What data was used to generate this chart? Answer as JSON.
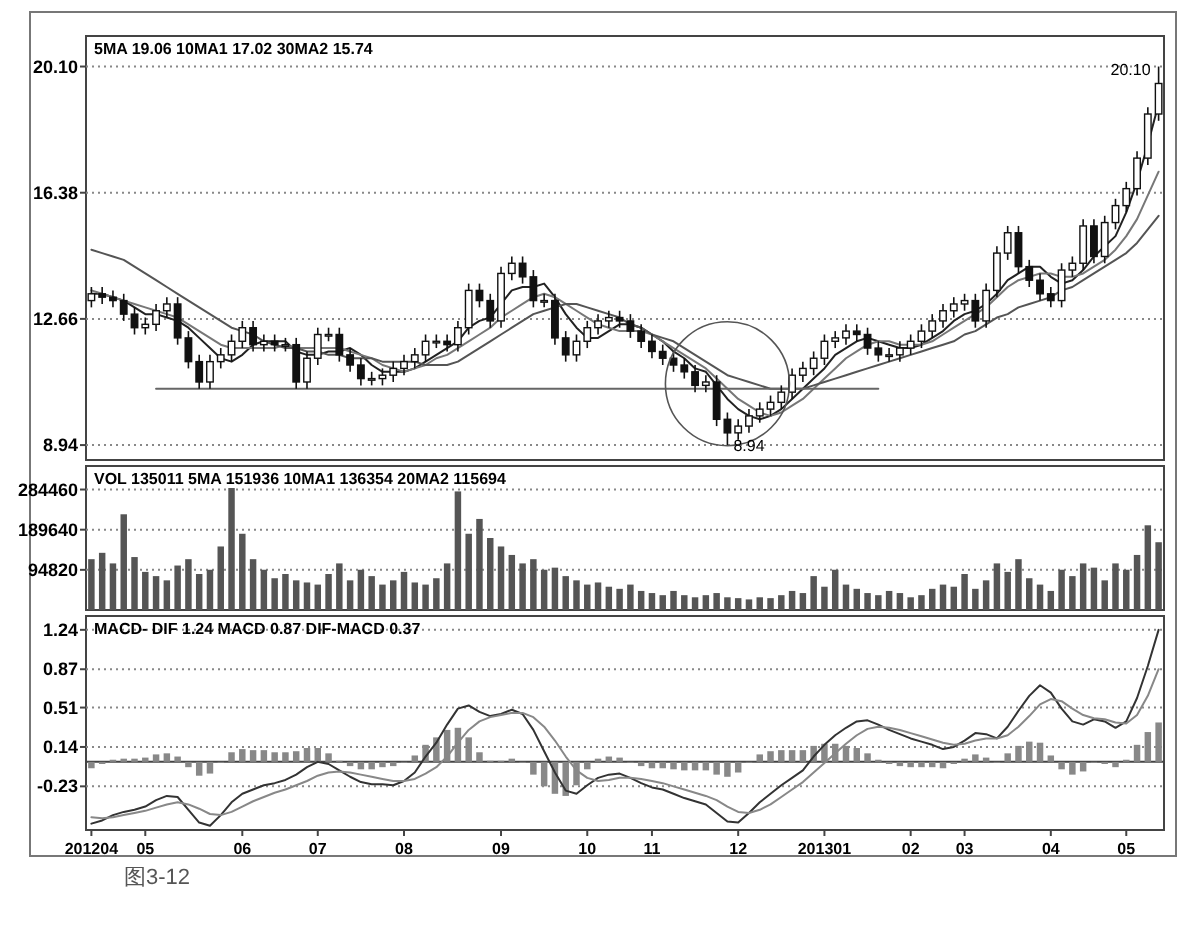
{
  "chart_data": [
    {
      "type": "candlestick",
      "categories": [
        "201204",
        null,
        null,
        null,
        null,
        "05",
        null,
        null,
        null,
        null,
        null,
        null,
        null,
        null,
        "06",
        null,
        null,
        null,
        null,
        null,
        null,
        "07",
        null,
        null,
        null,
        null,
        null,
        null,
        null,
        "08",
        null,
        null,
        null,
        null,
        null,
        null,
        null,
        null,
        "09",
        null,
        null,
        null,
        null,
        null,
        null,
        null,
        "10",
        null,
        null,
        null,
        null,
        null,
        "11",
        null,
        null,
        null,
        null,
        null,
        null,
        null,
        "12",
        null,
        null,
        null,
        null,
        null,
        null,
        null,
        "201301",
        null,
        null,
        null,
        null,
        null,
        null,
        null,
        "02",
        null,
        null,
        null,
        null,
        "03",
        null,
        null,
        null,
        null,
        null,
        null,
        null,
        "04",
        null,
        null,
        null,
        null,
        null,
        null,
        "05",
        null,
        null,
        null
      ],
      "ohlc": [
        [
          13.2,
          13.6,
          13.0,
          13.4
        ],
        [
          13.4,
          13.6,
          13.1,
          13.3
        ],
        [
          13.3,
          13.5,
          13.0,
          13.2
        ],
        [
          13.2,
          13.4,
          12.6,
          12.8
        ],
        [
          12.8,
          13.0,
          12.2,
          12.4
        ],
        [
          12.4,
          12.7,
          12.2,
          12.5
        ],
        [
          12.5,
          13.1,
          12.3,
          12.9
        ],
        [
          12.9,
          13.3,
          12.7,
          13.1
        ],
        [
          13.1,
          13.3,
          11.9,
          12.1
        ],
        [
          12.1,
          12.3,
          11.2,
          11.4
        ],
        [
          11.4,
          11.6,
          10.6,
          10.8
        ],
        [
          10.8,
          11.6,
          10.6,
          11.4
        ],
        [
          11.4,
          11.8,
          11.2,
          11.6
        ],
        [
          11.6,
          12.2,
          11.4,
          12.0
        ],
        [
          12.0,
          12.6,
          11.8,
          12.4
        ],
        [
          12.4,
          12.6,
          11.7,
          11.9
        ],
        [
          11.9,
          12.2,
          11.7,
          12.0
        ],
        [
          12.0,
          12.2,
          11.7,
          11.9
        ],
        [
          11.9,
          12.1,
          11.7,
          11.9
        ],
        [
          11.9,
          12.1,
          10.6,
          10.8
        ],
        [
          10.8,
          11.7,
          10.6,
          11.5
        ],
        [
          11.5,
          12.4,
          11.3,
          12.2
        ],
        [
          12.2,
          12.4,
          12.0,
          12.2
        ],
        [
          12.2,
          12.4,
          11.4,
          11.6
        ],
        [
          11.6,
          11.8,
          11.1,
          11.3
        ],
        [
          11.3,
          11.5,
          10.7,
          10.9
        ],
        [
          10.9,
          11.1,
          10.7,
          10.9
        ],
        [
          10.9,
          11.2,
          10.7,
          11.0
        ],
        [
          11.0,
          11.4,
          10.8,
          11.2
        ],
        [
          11.2,
          11.6,
          11.0,
          11.4
        ],
        [
          11.4,
          11.8,
          11.2,
          11.6
        ],
        [
          11.6,
          12.2,
          11.4,
          12.0
        ],
        [
          12.0,
          12.2,
          11.8,
          12.0
        ],
        [
          12.0,
          12.2,
          11.7,
          11.9
        ],
        [
          11.9,
          12.6,
          11.7,
          12.4
        ],
        [
          12.4,
          13.7,
          12.2,
          13.5
        ],
        [
          13.5,
          13.7,
          13.0,
          13.2
        ],
        [
          13.2,
          13.4,
          12.4,
          12.6
        ],
        [
          12.6,
          14.2,
          12.4,
          14.0
        ],
        [
          14.0,
          14.5,
          13.8,
          14.3
        ],
        [
          14.3,
          14.5,
          13.7,
          13.9
        ],
        [
          13.9,
          14.1,
          13.0,
          13.2
        ],
        [
          13.2,
          13.4,
          13.0,
          13.2
        ],
        [
          13.2,
          13.4,
          11.9,
          12.1
        ],
        [
          12.1,
          12.3,
          11.4,
          11.6
        ],
        [
          11.6,
          12.2,
          11.4,
          12.0
        ],
        [
          12.0,
          12.6,
          11.8,
          12.4
        ],
        [
          12.4,
          12.8,
          12.2,
          12.6
        ],
        [
          12.6,
          12.9,
          12.4,
          12.7
        ],
        [
          12.7,
          12.9,
          12.4,
          12.6
        ],
        [
          12.6,
          12.8,
          12.1,
          12.3
        ],
        [
          12.3,
          12.5,
          11.8,
          12.0
        ],
        [
          12.0,
          12.2,
          11.5,
          11.7
        ],
        [
          11.7,
          11.9,
          11.3,
          11.5
        ],
        [
          11.5,
          11.7,
          11.1,
          11.3
        ],
        [
          11.3,
          11.5,
          10.9,
          11.1
        ],
        [
          11.1,
          11.3,
          10.5,
          10.7
        ],
        [
          10.7,
          11.0,
          10.5,
          10.8
        ],
        [
          10.8,
          11.0,
          9.5,
          9.7
        ],
        [
          9.7,
          9.9,
          8.94,
          9.3
        ],
        [
          9.3,
          9.7,
          9.1,
          9.5
        ],
        [
          9.5,
          10.0,
          9.3,
          9.8
        ],
        [
          9.8,
          10.2,
          9.6,
          10.0
        ],
        [
          10.0,
          10.4,
          9.8,
          10.2
        ],
        [
          10.2,
          10.7,
          10.0,
          10.5
        ],
        [
          10.5,
          11.2,
          10.3,
          11.0
        ],
        [
          11.0,
          11.4,
          10.8,
          11.2
        ],
        [
          11.2,
          11.7,
          11.0,
          11.5
        ],
        [
          11.5,
          12.2,
          11.3,
          12.0
        ],
        [
          12.0,
          12.3,
          11.8,
          12.1
        ],
        [
          12.1,
          12.5,
          11.9,
          12.3
        ],
        [
          12.3,
          12.5,
          12.0,
          12.2
        ],
        [
          12.2,
          12.4,
          11.6,
          11.8
        ],
        [
          11.8,
          12.0,
          11.4,
          11.6
        ],
        [
          11.6,
          11.8,
          11.4,
          11.6
        ],
        [
          11.6,
          12.0,
          11.4,
          11.8
        ],
        [
          11.8,
          12.2,
          11.6,
          12.0
        ],
        [
          12.0,
          12.5,
          11.8,
          12.3
        ],
        [
          12.3,
          12.8,
          12.1,
          12.6
        ],
        [
          12.6,
          13.1,
          12.4,
          12.9
        ],
        [
          12.9,
          13.3,
          12.7,
          13.1
        ],
        [
          13.1,
          13.4,
          12.9,
          13.2
        ],
        [
          13.2,
          13.4,
          12.4,
          12.6
        ],
        [
          12.6,
          13.7,
          12.4,
          13.5
        ],
        [
          13.5,
          14.8,
          13.3,
          14.6
        ],
        [
          14.6,
          15.4,
          14.4,
          15.2
        ],
        [
          15.2,
          15.4,
          14.0,
          14.2
        ],
        [
          14.2,
          14.4,
          13.6,
          13.8
        ],
        [
          13.8,
          14.0,
          13.2,
          13.4
        ],
        [
          13.4,
          13.6,
          13.0,
          13.2
        ],
        [
          13.2,
          14.3,
          13.0,
          14.1
        ],
        [
          14.1,
          14.5,
          13.9,
          14.3
        ],
        [
          14.3,
          15.6,
          14.1,
          15.4
        ],
        [
          15.4,
          15.6,
          14.3,
          14.5
        ],
        [
          14.5,
          15.7,
          14.3,
          15.5
        ],
        [
          15.5,
          16.2,
          15.3,
          16.0
        ],
        [
          16.0,
          16.7,
          15.8,
          16.5
        ],
        [
          16.5,
          17.6,
          16.3,
          17.4
        ],
        [
          17.4,
          18.9,
          17.2,
          18.7
        ],
        [
          18.7,
          20.1,
          18.5,
          19.6
        ]
      ],
      "series": [
        {
          "type": "line",
          "color": "#222222",
          "values": [
            13.4,
            13.4,
            13.3,
            13.2,
            13.0,
            12.8,
            12.8,
            12.7,
            12.6,
            12.4,
            12.1,
            11.8,
            11.5,
            11.4,
            11.6,
            11.9,
            12.0,
            12.0,
            12.0,
            11.7,
            11.6,
            11.6,
            11.7,
            11.7,
            11.8,
            11.6,
            11.3,
            11.1,
            11.1,
            11.1,
            11.2,
            11.4,
            11.6,
            11.8,
            12.0,
            12.4,
            12.6,
            12.7,
            13.1,
            13.5,
            13.6,
            13.6,
            13.7,
            13.3,
            12.8,
            12.4,
            12.1,
            12.1,
            12.3,
            12.5,
            12.5,
            12.4,
            12.2,
            12.0,
            11.7,
            11.5,
            11.2,
            11.1,
            10.7,
            10.3,
            10.0,
            9.8,
            9.7,
            9.8,
            10.0,
            10.3,
            10.6,
            10.9,
            11.2,
            11.6,
            11.8,
            12.0,
            12.1,
            12.0,
            11.9,
            11.8,
            11.8,
            11.9,
            12.1,
            12.3,
            12.6,
            12.8,
            12.9,
            13.1,
            13.4,
            13.8,
            14.0,
            14.2,
            14.2,
            13.9,
            13.7,
            13.8,
            14.1,
            14.5,
            14.8,
            15.1,
            15.8,
            16.7,
            17.8,
            19.0
          ]
        },
        {
          "type": "line",
          "color": "#777777",
          "values": [
            13.5,
            13.4,
            13.3,
            13.2,
            13.1,
            13.0,
            12.9,
            12.8,
            12.7,
            12.5,
            12.3,
            12.1,
            11.9,
            11.8,
            11.8,
            11.8,
            11.8,
            11.8,
            11.9,
            11.8,
            11.8,
            11.8,
            11.8,
            11.8,
            11.7,
            11.6,
            11.5,
            11.3,
            11.2,
            11.1,
            11.2,
            11.3,
            11.5,
            11.6,
            11.8,
            12.0,
            12.2,
            12.4,
            12.7,
            12.9,
            13.1,
            13.3,
            13.4,
            13.3,
            13.1,
            12.9,
            12.7,
            12.5,
            12.4,
            12.3,
            12.3,
            12.3,
            12.2,
            12.0,
            11.8,
            11.6,
            11.4,
            11.2,
            10.9,
            10.6,
            10.3,
            10.1,
            9.9,
            9.8,
            9.9,
            10.1,
            10.3,
            10.6,
            10.9,
            11.2,
            11.5,
            11.7,
            11.9,
            12.0,
            12.0,
            11.9,
            11.9,
            11.9,
            12.0,
            12.2,
            12.4,
            12.6,
            12.8,
            13.0,
            13.3,
            13.6,
            13.8,
            13.9,
            14.0,
            14.0,
            13.9,
            13.9,
            14.0,
            14.2,
            14.4,
            14.7,
            15.1,
            15.6,
            16.3,
            17.0
          ]
        },
        {
          "type": "line",
          "color": "#555555",
          "values": [
            14.7,
            14.6,
            14.5,
            14.4,
            14.2,
            14.0,
            13.8,
            13.6,
            13.4,
            13.2,
            13.0,
            12.8,
            12.6,
            12.4,
            12.3,
            12.2,
            12.0,
            11.9,
            11.8,
            11.8,
            11.7,
            11.7,
            11.6,
            11.6,
            11.5,
            11.5,
            11.5,
            11.4,
            11.4,
            11.4,
            11.4,
            11.3,
            11.3,
            11.3,
            11.4,
            11.6,
            11.8,
            12.0,
            12.2,
            12.4,
            12.6,
            12.8,
            12.9,
            13.0,
            13.1,
            13.1,
            13.0,
            12.9,
            12.8,
            12.7,
            12.5,
            12.4,
            12.2,
            12.1,
            12.0,
            11.8,
            11.6,
            11.4,
            11.2,
            11.0,
            10.9,
            10.8,
            10.7,
            10.6,
            10.6,
            10.6,
            10.6,
            10.7,
            10.8,
            10.9,
            11.0,
            11.1,
            11.2,
            11.3,
            11.4,
            11.5,
            11.6,
            11.7,
            11.8,
            11.9,
            12.0,
            12.2,
            12.3,
            12.5,
            12.7,
            12.8,
            13.0,
            13.1,
            13.2,
            13.3,
            13.5,
            13.6,
            13.8,
            14.0,
            14.2,
            14.4,
            14.6,
            14.9,
            15.3,
            15.7
          ]
        },
        {
          "type": "line",
          "color": "#666666",
          "values": [
            null,
            null,
            null,
            null,
            null,
            null,
            10.6,
            10.6,
            10.6,
            10.6,
            10.6,
            10.6,
            10.6,
            10.6,
            10.6,
            10.6,
            10.6,
            10.6,
            10.6,
            10.6,
            10.6,
            10.6,
            10.6,
            10.6,
            10.6,
            10.6,
            10.6,
            10.6,
            10.6,
            10.6,
            10.6,
            10.6,
            10.6,
            10.6,
            10.6,
            10.6,
            10.6,
            10.6,
            10.6,
            10.6,
            10.6,
            10.6,
            10.6,
            10.6,
            10.6,
            10.6,
            10.6,
            10.6,
            10.6,
            10.6,
            10.6,
            10.6,
            10.6,
            10.6,
            10.6,
            10.6,
            10.6,
            10.6,
            10.6,
            10.6,
            10.6,
            10.6,
            10.6,
            10.6,
            10.6,
            10.6,
            10.6,
            10.6,
            10.6,
            10.6,
            10.6,
            10.6,
            10.6,
            10.6,
            null,
            null,
            null,
            null,
            null,
            null,
            null,
            null,
            null,
            null,
            null,
            null,
            null,
            null,
            null,
            null,
            null,
            null,
            null,
            null,
            null,
            null,
            null,
            null,
            null,
            null
          ]
        }
      ],
      "ylim": [
        8.5,
        21.0
      ],
      "yticks": [
        8.94,
        12.66,
        16.38,
        {
          "value": 20.1,
          "label": "20.10"
        }
      ],
      "grid": "y",
      "tick_labels": "y",
      "annotations": [
        "5MA 19.06  10MA1 17.02  30MA2 15.74",
        "20.10",
        "8.94"
      ]
    },
    {
      "type": "bar",
      "categories": [
        "201204",
        null,
        null,
        null,
        null,
        "05",
        null,
        null,
        null,
        null,
        null,
        null,
        null,
        null,
        "06",
        null,
        null,
        null,
        null,
        null,
        null,
        "07",
        null,
        null,
        null,
        null,
        null,
        null,
        null,
        "08",
        null,
        null,
        null,
        null,
        null,
        null,
        null,
        null,
        "09",
        null,
        null,
        null,
        null,
        null,
        null,
        null,
        "10",
        null,
        null,
        null,
        null,
        null,
        "11",
        null,
        null,
        null,
        null,
        null,
        null,
        null,
        "12",
        null,
        null,
        null,
        null,
        null,
        null,
        null,
        "201301",
        null,
        null,
        null,
        null,
        null,
        null,
        null,
        "02",
        null,
        null,
        null,
        null,
        "03",
        null,
        null,
        null,
        null,
        null,
        null,
        null,
        "04",
        null,
        null,
        null,
        null,
        null,
        null,
        "05",
        null,
        null,
        null
      ],
      "values": [
        120000,
        135000,
        110000,
        226000,
        125000,
        90000,
        80000,
        70000,
        105000,
        120000,
        85000,
        95000,
        150000,
        288000,
        180000,
        120000,
        95000,
        75000,
        85000,
        70000,
        65000,
        60000,
        85000,
        110000,
        70000,
        95000,
        80000,
        60000,
        70000,
        90000,
        65000,
        60000,
        75000,
        110000,
        280000,
        180000,
        215000,
        170000,
        150000,
        130000,
        110000,
        120000,
        95000,
        100000,
        80000,
        70000,
        60000,
        65000,
        55000,
        50000,
        60000,
        45000,
        40000,
        35000,
        45000,
        35000,
        30000,
        35000,
        40000,
        30000,
        28000,
        25000,
        30000,
        28000,
        35000,
        45000,
        40000,
        80000,
        55000,
        95000,
        60000,
        50000,
        40000,
        35000,
        45000,
        40000,
        30000,
        35000,
        50000,
        60000,
        55000,
        85000,
        50000,
        70000,
        110000,
        90000,
        120000,
        75000,
        60000,
        45000,
        95000,
        80000,
        110000,
        100000,
        70000,
        110000,
        95000,
        130000,
        200000,
        160000
      ],
      "color": "#555555",
      "ylim": [
        0,
        340000
      ],
      "yticks": [
        94820,
        189640,
        284460
      ],
      "grid": "y",
      "tick_labels": "y",
      "annotations": [
        "VOL 135011  5MA 151936  10MA1 136354  20MA2 115694"
      ]
    },
    {
      "type": "line",
      "categories": [
        "201204",
        null,
        null,
        null,
        null,
        "05",
        null,
        null,
        null,
        null,
        null,
        null,
        null,
        null,
        "06",
        null,
        null,
        null,
        null,
        null,
        null,
        "07",
        null,
        null,
        null,
        null,
        null,
        null,
        null,
        "08",
        null,
        null,
        null,
        null,
        null,
        null,
        null,
        null,
        "09",
        null,
        null,
        null,
        null,
        null,
        null,
        null,
        "10",
        null,
        null,
        null,
        null,
        null,
        "11",
        null,
        null,
        null,
        null,
        null,
        null,
        null,
        "12",
        null,
        null,
        null,
        null,
        null,
        null,
        null,
        "201301",
        null,
        null,
        null,
        null,
        null,
        null,
        null,
        "02",
        null,
        null,
        null,
        null,
        "03",
        null,
        null,
        null,
        null,
        null,
        null,
        null,
        "04",
        null,
        null,
        null,
        null,
        null,
        null,
        "05",
        null,
        null,
        null
      ],
      "series": [
        {
          "type": "bar",
          "color": "#888888",
          "values": [
            -0.06,
            -0.02,
            0.02,
            0.03,
            0.03,
            0.04,
            0.07,
            0.08,
            0.05,
            -0.05,
            -0.13,
            -0.11,
            0.0,
            0.09,
            0.12,
            0.11,
            0.11,
            0.09,
            0.09,
            0.1,
            0.13,
            0.13,
            0.08,
            0.01,
            -0.04,
            -0.07,
            -0.07,
            -0.05,
            -0.04,
            0.0,
            0.06,
            0.16,
            0.23,
            0.3,
            0.32,
            0.23,
            0.09,
            0.01,
            0.01,
            0.03,
            -0.01,
            -0.12,
            -0.23,
            -0.3,
            -0.32,
            -0.22,
            -0.07,
            0.03,
            0.05,
            0.04,
            0.0,
            -0.04,
            -0.06,
            -0.06,
            -0.07,
            -0.08,
            -0.08,
            -0.08,
            -0.12,
            -0.14,
            -0.1,
            0.0,
            0.07,
            0.1,
            0.11,
            0.11,
            0.11,
            0.15,
            0.17,
            0.17,
            0.15,
            0.13,
            0.08,
            0.02,
            -0.02,
            -0.04,
            -0.05,
            -0.05,
            -0.05,
            -0.06,
            -0.02,
            0.03,
            0.07,
            0.04,
            0.0,
            0.08,
            0.15,
            0.19,
            0.18,
            0.06,
            -0.07,
            -0.12,
            -0.09,
            -0.01,
            -0.02,
            -0.05,
            0.02,
            0.16,
            0.28,
            0.37
          ]
        },
        {
          "type": "line",
          "color": "#333333",
          "values": [
            -0.58,
            -0.55,
            -0.5,
            -0.47,
            -0.45,
            -0.42,
            -0.36,
            -0.32,
            -0.33,
            -0.45,
            -0.57,
            -0.6,
            -0.5,
            -0.38,
            -0.3,
            -0.26,
            -0.22,
            -0.2,
            -0.17,
            -0.12,
            -0.05,
            0.0,
            -0.02,
            -0.08,
            -0.14,
            -0.19,
            -0.21,
            -0.21,
            -0.22,
            -0.18,
            -0.1,
            0.05,
            0.18,
            0.35,
            0.5,
            0.53,
            0.47,
            0.43,
            0.45,
            0.49,
            0.45,
            0.3,
            0.1,
            -0.1,
            -0.27,
            -0.3,
            -0.22,
            -0.15,
            -0.12,
            -0.11,
            -0.15,
            -0.2,
            -0.24,
            -0.26,
            -0.3,
            -0.34,
            -0.37,
            -0.4,
            -0.48,
            -0.56,
            -0.57,
            -0.48,
            -0.38,
            -0.3,
            -0.22,
            -0.15,
            -0.08,
            0.05,
            0.16,
            0.25,
            0.32,
            0.38,
            0.39,
            0.35,
            0.3,
            0.26,
            0.22,
            0.19,
            0.16,
            0.12,
            0.14,
            0.2,
            0.27,
            0.26,
            0.22,
            0.33,
            0.48,
            0.62,
            0.72,
            0.65,
            0.5,
            0.38,
            0.35,
            0.4,
            0.38,
            0.32,
            0.38,
            0.6,
            0.9,
            1.24
          ]
        },
        {
          "type": "line",
          "color": "#888888",
          "values": [
            -0.52,
            -0.53,
            -0.52,
            -0.5,
            -0.48,
            -0.46,
            -0.43,
            -0.4,
            -0.38,
            -0.4,
            -0.44,
            -0.49,
            -0.5,
            -0.47,
            -0.42,
            -0.37,
            -0.33,
            -0.29,
            -0.26,
            -0.22,
            -0.18,
            -0.13,
            -0.1,
            -0.09,
            -0.1,
            -0.12,
            -0.14,
            -0.16,
            -0.18,
            -0.18,
            -0.16,
            -0.11,
            -0.05,
            0.05,
            0.18,
            0.3,
            0.38,
            0.42,
            0.44,
            0.46,
            0.46,
            0.42,
            0.33,
            0.2,
            0.05,
            -0.08,
            -0.15,
            -0.18,
            -0.17,
            -0.15,
            -0.15,
            -0.16,
            -0.18,
            -0.2,
            -0.23,
            -0.26,
            -0.29,
            -0.32,
            -0.36,
            -0.42,
            -0.47,
            -0.48,
            -0.45,
            -0.4,
            -0.33,
            -0.26,
            -0.19,
            -0.1,
            -0.01,
            0.08,
            0.17,
            0.25,
            0.31,
            0.33,
            0.32,
            0.3,
            0.27,
            0.24,
            0.21,
            0.18,
            0.16,
            0.17,
            0.2,
            0.22,
            0.22,
            0.25,
            0.33,
            0.43,
            0.54,
            0.59,
            0.57,
            0.5,
            0.44,
            0.41,
            0.4,
            0.37,
            0.36,
            0.44,
            0.62,
            0.87
          ]
        }
      ],
      "ylim": [
        -0.64,
        1.37
      ],
      "yticks": [
        -0.23,
        0.14,
        0.51,
        0.87,
        1.24
      ],
      "grid": "y",
      "ref_lines": [
        {
          "axis": "y",
          "value": 0,
          "color": "#444444"
        }
      ],
      "annotations": [
        "MACD- DIF 1.24  MACD 0.87  DIF-MACD 0.37",
        "图3-12"
      ]
    }
  ]
}
